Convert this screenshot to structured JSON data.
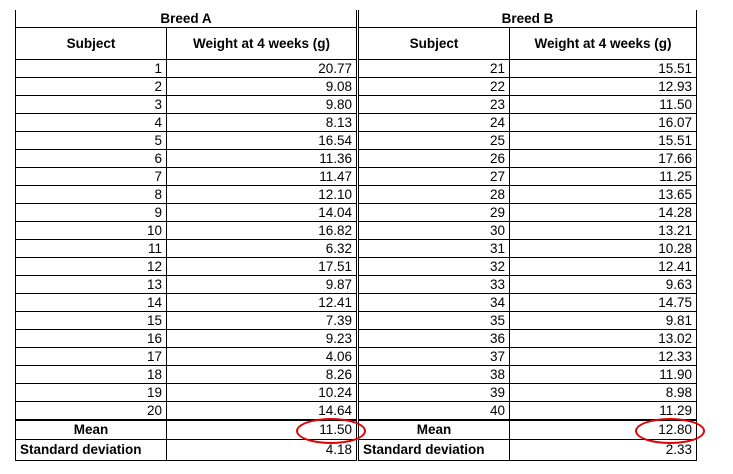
{
  "breed_a": {
    "title": "Breed A",
    "subject_header": "Subject",
    "weight_header": "Weight at 4 weeks (g)",
    "rows": [
      {
        "subject": "1",
        "weight": "20.77"
      },
      {
        "subject": "2",
        "weight": "9.08"
      },
      {
        "subject": "3",
        "weight": "9.80"
      },
      {
        "subject": "4",
        "weight": "8.13"
      },
      {
        "subject": "5",
        "weight": "16.54"
      },
      {
        "subject": "6",
        "weight": "11.36"
      },
      {
        "subject": "7",
        "weight": "11.47"
      },
      {
        "subject": "8",
        "weight": "12.10"
      },
      {
        "subject": "9",
        "weight": "14.04"
      },
      {
        "subject": "10",
        "weight": "16.82"
      },
      {
        "subject": "11",
        "weight": "6.32"
      },
      {
        "subject": "12",
        "weight": "17.51"
      },
      {
        "subject": "13",
        "weight": "9.87"
      },
      {
        "subject": "14",
        "weight": "12.41"
      },
      {
        "subject": "15",
        "weight": "7.39"
      },
      {
        "subject": "16",
        "weight": "9.23"
      },
      {
        "subject": "17",
        "weight": "4.06"
      },
      {
        "subject": "18",
        "weight": "8.26"
      },
      {
        "subject": "19",
        "weight": "10.24"
      },
      {
        "subject": "20",
        "weight": "14.64"
      }
    ],
    "mean_label": "Mean",
    "mean_value": "11.50",
    "sd_label": "Standard deviation",
    "sd_value": "4.18"
  },
  "breed_b": {
    "title": "Breed B",
    "subject_header": "Subject",
    "weight_header": "Weight at 4 weeks (g)",
    "rows": [
      {
        "subject": "21",
        "weight": "15.51"
      },
      {
        "subject": "22",
        "weight": "12.93"
      },
      {
        "subject": "23",
        "weight": "11.50"
      },
      {
        "subject": "24",
        "weight": "16.07"
      },
      {
        "subject": "25",
        "weight": "15.51"
      },
      {
        "subject": "26",
        "weight": "17.66"
      },
      {
        "subject": "27",
        "weight": "11.25"
      },
      {
        "subject": "28",
        "weight": "13.65"
      },
      {
        "subject": "29",
        "weight": "14.28"
      },
      {
        "subject": "30",
        "weight": "13.21"
      },
      {
        "subject": "31",
        "weight": "10.28"
      },
      {
        "subject": "32",
        "weight": "12.41"
      },
      {
        "subject": "33",
        "weight": "9.63"
      },
      {
        "subject": "34",
        "weight": "14.75"
      },
      {
        "subject": "35",
        "weight": "9.81"
      },
      {
        "subject": "36",
        "weight": "13.02"
      },
      {
        "subject": "37",
        "weight": "12.33"
      },
      {
        "subject": "38",
        "weight": "11.90"
      },
      {
        "subject": "39",
        "weight": "8.98"
      },
      {
        "subject": "40",
        "weight": "11.29"
      }
    ],
    "mean_label": "Mean",
    "mean_value": "12.80",
    "sd_label": "Standard deviation",
    "sd_value": "2.33"
  },
  "highlight_color": "#e00000"
}
